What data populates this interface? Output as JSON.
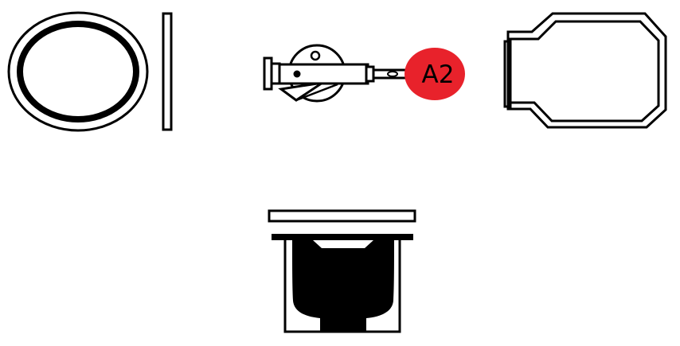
{
  "colors": {
    "stroke": "#000000",
    "background": "#ffffff",
    "callout_fill": "#e8222b",
    "solid_fill": "#000000"
  },
  "parts": [
    {
      "id": "gasket-ring",
      "view": "front"
    },
    {
      "id": "gasket-ring",
      "view": "side"
    },
    {
      "id": "latch-pin-assembly",
      "view": "front"
    },
    {
      "id": "handle-bracket",
      "view": "front"
    },
    {
      "id": "cup-housing",
      "view": "section"
    }
  ],
  "callouts": [
    {
      "label": "A2",
      "target": "latch-pin-assembly"
    }
  ]
}
